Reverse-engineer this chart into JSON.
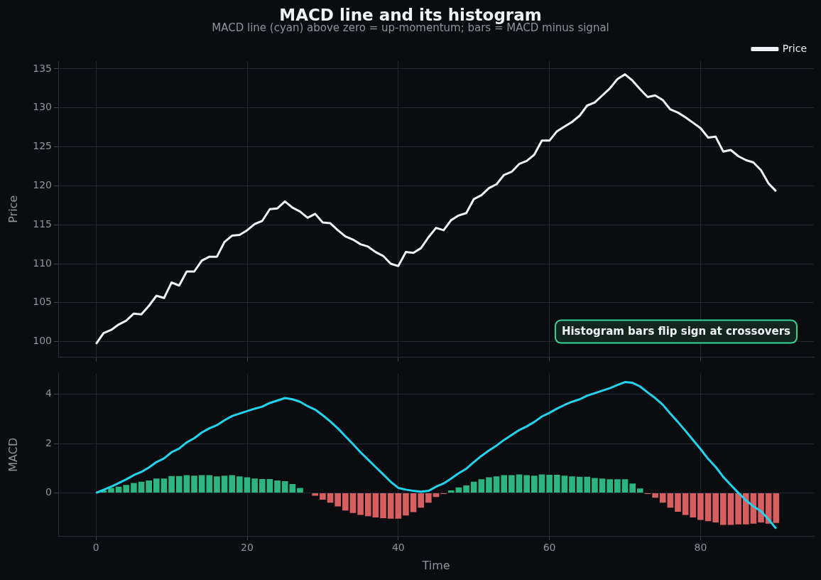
{
  "chart_data": [
    {
      "type": "line",
      "title": "MACD line and its histogram",
      "subtitle": "MACD line (cyan) above zero = up-momentum; bars = MACD minus signal",
      "ylabel": "Price",
      "x": [
        0,
        1,
        2,
        3,
        4,
        5,
        6,
        7,
        8,
        9,
        10,
        11,
        12,
        13,
        14,
        15,
        16,
        17,
        18,
        19,
        20,
        21,
        22,
        23,
        24,
        25,
        26,
        27,
        28,
        29,
        30,
        31,
        32,
        33,
        34,
        35,
        36,
        37,
        38,
        39,
        40,
        41,
        42,
        43,
        44,
        45,
        46,
        47,
        48,
        49,
        50,
        51,
        52,
        53,
        54,
        55,
        56,
        57,
        58,
        59,
        60,
        61,
        62,
        63,
        64,
        65,
        66,
        67,
        68,
        69,
        70,
        71,
        72,
        73,
        74,
        75,
        76,
        77,
        78,
        79,
        80,
        81,
        82,
        83,
        84,
        85,
        86,
        87,
        88,
        89,
        90
      ],
      "series": [
        {
          "name": "Price",
          "color": "#eef1f5",
          "values": [
            99.7,
            101.1,
            101.5,
            102.2,
            102.7,
            103.6,
            103.5,
            104.6,
            105.9,
            105.6,
            107.6,
            107.2,
            109.0,
            109.0,
            110.4,
            110.9,
            110.9,
            112.8,
            113.6,
            113.7,
            114.3,
            115.1,
            115.5,
            117.0,
            117.1,
            118.0,
            117.2,
            116.7,
            115.9,
            116.4,
            115.3,
            115.2,
            114.3,
            113.5,
            113.1,
            112.5,
            112.2,
            111.5,
            111.0,
            110.0,
            109.7,
            111.5,
            111.4,
            112.0,
            113.4,
            114.6,
            114.3,
            115.6,
            116.2,
            116.5,
            118.3,
            118.8,
            119.7,
            120.2,
            121.4,
            121.8,
            122.8,
            123.2,
            124.0,
            125.8,
            125.8,
            127.0,
            127.6,
            128.2,
            129.0,
            130.3,
            130.7,
            131.6,
            132.5,
            133.7,
            134.3,
            133.5,
            132.4,
            131.4,
            131.6,
            131.0,
            129.8,
            129.4,
            128.8,
            128.1,
            127.4,
            126.2,
            126.3,
            124.4,
            124.6,
            123.8,
            123.3,
            123.0,
            122.0,
            120.3,
            119.3
          ]
        }
      ],
      "xlim": [
        -5,
        95
      ],
      "xticks": [
        0,
        20,
        40,
        60,
        80
      ],
      "ylim": [
        98,
        136
      ],
      "yticks": [
        100,
        105,
        110,
        115,
        120,
        125,
        130,
        135
      ],
      "tick_labels": "y",
      "grid": true,
      "legend": "top right",
      "marker": "none",
      "annotations": [
        "Histogram bars flip sign at crossovers"
      ]
    },
    {
      "type": "bar",
      "xlabel": "Time",
      "ylabel": "MACD",
      "x": [
        0,
        1,
        2,
        3,
        4,
        5,
        6,
        7,
        8,
        9,
        10,
        11,
        12,
        13,
        14,
        15,
        16,
        17,
        18,
        19,
        20,
        21,
        22,
        23,
        24,
        25,
        26,
        27,
        28,
        29,
        30,
        31,
        32,
        33,
        34,
        35,
        36,
        37,
        38,
        39,
        40,
        41,
        42,
        43,
        44,
        45,
        46,
        47,
        48,
        49,
        50,
        51,
        52,
        53,
        54,
        55,
        56,
        57,
        58,
        59,
        60,
        61,
        62,
        63,
        64,
        65,
        66,
        67,
        68,
        69,
        70,
        71,
        72,
        73,
        74,
        75,
        76,
        77,
        78,
        79,
        80,
        81,
        82,
        83,
        84,
        85,
        86,
        87,
        88,
        89,
        90
      ],
      "series": [
        {
          "type": "bar",
          "values": [
            null,
            0.1,
            0.2,
            0.25,
            0.32,
            0.4,
            0.45,
            0.5,
            0.58,
            0.58,
            0.68,
            0.68,
            0.72,
            0.7,
            0.72,
            0.72,
            0.67,
            0.7,
            0.72,
            0.67,
            0.63,
            0.58,
            0.56,
            0.56,
            0.5,
            0.47,
            0.36,
            0.2,
            0,
            -0.12,
            -0.28,
            -0.4,
            -0.55,
            -0.72,
            -0.82,
            -0.9,
            -0.95,
            -1.0,
            -1.03,
            -1.05,
            -1.05,
            -0.92,
            -0.78,
            -0.6,
            -0.4,
            -0.17,
            -0.05,
            0.1,
            0.22,
            0.3,
            0.45,
            0.55,
            0.63,
            0.67,
            0.72,
            0.72,
            0.75,
            0.72,
            0.7,
            0.75,
            0.73,
            0.73,
            0.7,
            0.67,
            0.65,
            0.65,
            0.6,
            0.58,
            0.55,
            0.55,
            0.55,
            0.38,
            0.18,
            -0.05,
            -0.2,
            -0.4,
            -0.6,
            -0.77,
            -0.9,
            -1.0,
            -1.1,
            -1.15,
            -1.2,
            -1.3,
            -1.3,
            -1.28,
            -1.28,
            -1.25,
            -1.2,
            -1.25,
            -1.22
          ],
          "colors": [
            "#2db581",
            "#2db581",
            "#2db581",
            "#2db581",
            "#2db581",
            "#2db581",
            "#2db581",
            "#2db581",
            "#2db581",
            "#2db581",
            "#2db581",
            "#2db581",
            "#2db581",
            "#2db581",
            "#2db581",
            "#2db581",
            "#2db581",
            "#2db581",
            "#2db581",
            "#2db581",
            "#2db581",
            "#2db581",
            "#2db581",
            "#2db581",
            "#2db581",
            "#2db581",
            "#2db581",
            "#2db581",
            "#2db581",
            "#d75f5f",
            "#d75f5f",
            "#d75f5f",
            "#d75f5f",
            "#d75f5f",
            "#d75f5f",
            "#d75f5f",
            "#d75f5f",
            "#d75f5f",
            "#d75f5f",
            "#d75f5f",
            "#d75f5f",
            "#d75f5f",
            "#d75f5f",
            "#d75f5f",
            "#d75f5f",
            "#d75f5f",
            "#d75f5f",
            "#2db581",
            "#2db581",
            "#2db581",
            "#2db581",
            "#2db581",
            "#2db581",
            "#2db581",
            "#2db581",
            "#2db581",
            "#2db581",
            "#2db581",
            "#2db581",
            "#2db581",
            "#2db581",
            "#2db581",
            "#2db581",
            "#2db581",
            "#2db581",
            "#2db581",
            "#2db581",
            "#2db581",
            "#2db581",
            "#2db581",
            "#2db581",
            "#2db581",
            "#2db581",
            "#d75f5f",
            "#d75f5f",
            "#d75f5f",
            "#d75f5f",
            "#d75f5f",
            "#d75f5f",
            "#d75f5f",
            "#d75f5f",
            "#d75f5f",
            "#d75f5f",
            "#d75f5f",
            "#d75f5f",
            "#d75f5f",
            "#d75f5f",
            "#d75f5f",
            "#d75f5f",
            "#d75f5f",
            "#d75f5f"
          ]
        },
        {
          "type": "line",
          "color": "#22d3ee",
          "values": [
            0,
            0.12,
            0.25,
            0.4,
            0.55,
            0.72,
            0.85,
            1.03,
            1.25,
            1.4,
            1.65,
            1.8,
            2.05,
            2.22,
            2.45,
            2.62,
            2.75,
            2.95,
            3.12,
            3.22,
            3.32,
            3.42,
            3.5,
            3.65,
            3.75,
            3.85,
            3.8,
            3.7,
            3.52,
            3.38,
            3.15,
            2.9,
            2.62,
            2.3,
            1.98,
            1.65,
            1.35,
            1.05,
            0.75,
            0.45,
            0.2,
            0.13,
            0.08,
            0.05,
            0.08,
            0.25,
            0.38,
            0.58,
            0.8,
            0.98,
            1.25,
            1.5,
            1.72,
            1.92,
            2.15,
            2.35,
            2.55,
            2.7,
            2.88,
            3.1,
            3.25,
            3.42,
            3.57,
            3.7,
            3.8,
            3.95,
            4.05,
            4.15,
            4.25,
            4.38,
            4.5,
            4.47,
            4.32,
            4.08,
            3.85,
            3.58,
            3.22,
            2.88,
            2.52,
            2.15,
            1.78,
            1.38,
            1.05,
            0.65,
            0.32,
            0.0,
            -0.3,
            -0.55,
            -0.75,
            -1.08,
            -1.45
          ]
        }
      ],
      "xlim": [
        -5,
        95
      ],
      "xticks": [
        0,
        20,
        40,
        60,
        80
      ],
      "ylim": [
        -1.75,
        4.85
      ],
      "yticks": [
        0,
        2,
        4
      ],
      "grid": true,
      "legend": false,
      "marker": "none"
    }
  ]
}
